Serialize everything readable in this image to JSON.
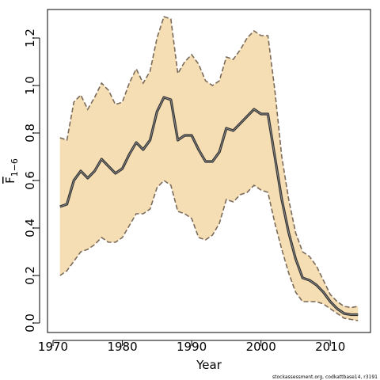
{
  "chart_data": {
    "type": "area",
    "xlabel": "Year",
    "ylabel": "F",
    "ylabel_subscript": "1−6",
    "xlim": [
      1969.2,
      2015.8
    ],
    "ylim": [
      -0.04,
      1.32
    ],
    "x_ticks": [
      1970,
      1980,
      1990,
      2000,
      2010
    ],
    "x_tick_labels": [
      "1970",
      "1980",
      "1990",
      "2000",
      "2010"
    ],
    "y_ticks": [
      0.0,
      0.2,
      0.4,
      0.6,
      0.8,
      1.0,
      1.2
    ],
    "y_tick_labels": [
      "0.0",
      "0.2",
      "0.4",
      "0.6",
      "0.8",
      "1.0",
      "1.2"
    ],
    "grid": false,
    "legend": "none",
    "colors": {
      "band": "#f5deb3",
      "bound_line": "#7a6a5a",
      "estimate_line": "#333333",
      "estimate_inner": "#9a9a9a"
    },
    "x": [
      1971,
      1972,
      1973,
      1974,
      1975,
      1976,
      1977,
      1978,
      1979,
      1980,
      1981,
      1982,
      1983,
      1984,
      1985,
      1986,
      1987,
      1988,
      1989,
      1990,
      1991,
      1992,
      1993,
      1994,
      1995,
      1996,
      1997,
      1998,
      1999,
      2000,
      2001,
      2002,
      2003,
      2004,
      2005,
      2006,
      2007,
      2008,
      2009,
      2010,
      2011,
      2012,
      2013,
      2014
    ],
    "series": [
      {
        "role": "upper",
        "values": [
          0.78,
          0.77,
          0.93,
          0.96,
          0.9,
          0.95,
          1.01,
          0.98,
          0.92,
          0.93,
          1.01,
          1.07,
          1.01,
          1.06,
          1.2,
          1.29,
          1.28,
          1.05,
          1.1,
          1.13,
          1.09,
          1.02,
          1.0,
          1.02,
          1.12,
          1.11,
          1.15,
          1.2,
          1.23,
          1.21,
          1.21,
          0.98,
          0.7,
          0.52,
          0.38,
          0.3,
          0.28,
          0.24,
          0.18,
          0.12,
          0.09,
          0.07,
          0.065,
          0.07
        ]
      },
      {
        "role": "estimate",
        "values": [
          0.49,
          0.5,
          0.6,
          0.64,
          0.61,
          0.64,
          0.69,
          0.66,
          0.63,
          0.65,
          0.71,
          0.76,
          0.73,
          0.77,
          0.89,
          0.95,
          0.94,
          0.77,
          0.79,
          0.79,
          0.73,
          0.68,
          0.68,
          0.72,
          0.82,
          0.81,
          0.84,
          0.87,
          0.9,
          0.88,
          0.88,
          0.7,
          0.52,
          0.38,
          0.27,
          0.19,
          0.18,
          0.16,
          0.13,
          0.09,
          0.06,
          0.04,
          0.035,
          0.035
        ]
      },
      {
        "role": "lower",
        "values": [
          0.2,
          0.22,
          0.26,
          0.3,
          0.31,
          0.33,
          0.36,
          0.34,
          0.34,
          0.36,
          0.41,
          0.46,
          0.46,
          0.48,
          0.57,
          0.6,
          0.58,
          0.47,
          0.46,
          0.44,
          0.36,
          0.35,
          0.37,
          0.42,
          0.52,
          0.51,
          0.54,
          0.55,
          0.58,
          0.56,
          0.55,
          0.42,
          0.31,
          0.21,
          0.13,
          0.09,
          0.09,
          0.09,
          0.08,
          0.06,
          0.04,
          0.02,
          0.015,
          0.01
        ]
      }
    ],
    "credit": "stockassessment.org, codkattbase14, r3191"
  }
}
